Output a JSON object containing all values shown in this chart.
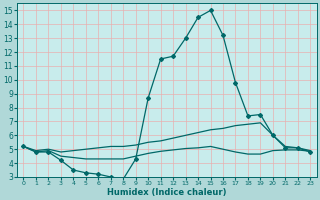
{
  "bg_color": "#b0d8d8",
  "plot_bg_color": "#c8ecec",
  "grid_color": "#e8b0b0",
  "line_color": "#006868",
  "xlabel": "Humidex (Indice chaleur)",
  "xlim": [
    -0.5,
    23.5
  ],
  "ylim": [
    3,
    15.5
  ],
  "xticks": [
    0,
    1,
    2,
    3,
    4,
    5,
    6,
    7,
    8,
    9,
    10,
    11,
    12,
    13,
    14,
    15,
    16,
    17,
    18,
    19,
    20,
    21,
    22,
    23
  ],
  "yticks": [
    3,
    4,
    5,
    6,
    7,
    8,
    9,
    10,
    11,
    12,
    13,
    14,
    15
  ],
  "line1_x": [
    0,
    1,
    2,
    3,
    4,
    5,
    6,
    7,
    8,
    9,
    10,
    11,
    12,
    13,
    14,
    15,
    16,
    17,
    18,
    19,
    20,
    21,
    22,
    23
  ],
  "line1_y": [
    5.2,
    4.8,
    4.8,
    4.2,
    3.5,
    3.3,
    3.2,
    3.0,
    2.85,
    4.3,
    8.7,
    11.5,
    11.7,
    13.0,
    14.5,
    15.0,
    13.2,
    9.8,
    7.4,
    7.5,
    6.0,
    5.1,
    5.1,
    4.8
  ],
  "line2_x": [
    0,
    1,
    2,
    3,
    4,
    5,
    6,
    7,
    8,
    9,
    10,
    11,
    12,
    13,
    14,
    15,
    16,
    17,
    18,
    19,
    20,
    21,
    22,
    23
  ],
  "line2_y": [
    5.2,
    4.9,
    5.0,
    4.8,
    4.9,
    5.0,
    5.1,
    5.2,
    5.2,
    5.3,
    5.5,
    5.6,
    5.8,
    6.0,
    6.2,
    6.4,
    6.5,
    6.7,
    6.8,
    6.9,
    6.0,
    5.2,
    5.1,
    4.9
  ],
  "line3_x": [
    0,
    1,
    2,
    3,
    4,
    5,
    6,
    7,
    8,
    9,
    10,
    11,
    12,
    13,
    14,
    15,
    16,
    17,
    18,
    19,
    20,
    21,
    22,
    23
  ],
  "line3_y": [
    5.2,
    4.8,
    4.9,
    4.5,
    4.4,
    4.3,
    4.3,
    4.3,
    4.3,
    4.5,
    4.7,
    4.85,
    4.95,
    5.05,
    5.1,
    5.2,
    5.0,
    4.8,
    4.65,
    4.65,
    4.9,
    4.95,
    4.95,
    4.85
  ]
}
